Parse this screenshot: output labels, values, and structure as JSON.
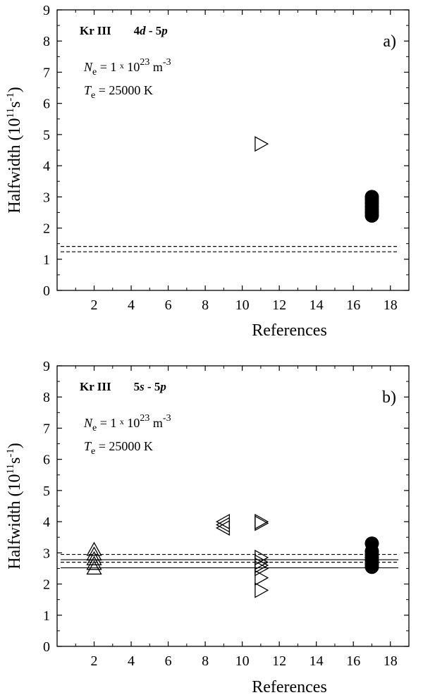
{
  "chart_data": [
    {
      "type": "scatter",
      "panel": "a)",
      "title": {
        "species": "Kr III",
        "transition_a": "4",
        "transition_a_em": "d",
        "transition_sep": " - 5",
        "transition_b_em": "p"
      },
      "annotation_ne": {
        "sym": "N",
        "sub": "e",
        "mid": " = 1 ",
        "x": "x",
        "ten": " 10",
        "exp": "23",
        "unit": " m",
        "unit_exp": "-3"
      },
      "annotation_te": {
        "sym": "T",
        "sub": "e",
        "rest": " = 25000 K"
      },
      "xlabel": "References",
      "ylabel": {
        "main": "Halfwidth  (10",
        "exp1": "11",
        "mid": "s",
        "exp2": "-1",
        "end": ")"
      },
      "xlim": [
        0,
        19
      ],
      "ylim": [
        0,
        9
      ],
      "xticks": [
        2,
        4,
        6,
        8,
        10,
        12,
        14,
        16,
        18
      ],
      "yticks": [
        0,
        1,
        2,
        3,
        4,
        5,
        6,
        7,
        8,
        9
      ],
      "series": [
        {
          "marker": "triangle-right",
          "x": [
            11
          ],
          "y": [
            4.7
          ]
        },
        {
          "marker": "filled-circle",
          "x": [
            17,
            17,
            17,
            17,
            17,
            17,
            17
          ],
          "y": [
            2.4,
            2.5,
            2.6,
            2.7,
            2.8,
            2.9,
            3.0
          ]
        }
      ],
      "hlines": [
        {
          "y": 1.41,
          "style": "dashed"
        },
        {
          "y": 1.24,
          "style": "dashed"
        }
      ]
    },
    {
      "type": "scatter",
      "panel": "b)",
      "title": {
        "species": "Kr III",
        "transition_a": "5",
        "transition_a_em": "s",
        "transition_sep": " - 5",
        "transition_b_em": "p"
      },
      "annotation_ne": {
        "sym": "N",
        "sub": "e",
        "mid": " = 1 ",
        "x": "x",
        "ten": " 10",
        "exp": "23",
        "unit": " m",
        "unit_exp": "-3"
      },
      "annotation_te": {
        "sym": "T",
        "sub": "e",
        "rest": " = 25000 K"
      },
      "xlabel": "References",
      "ylabel": {
        "main": "Halfwidth  (10",
        "exp1": "11",
        "mid": "s",
        "exp2": "-1",
        "end": ")"
      },
      "xlim": [
        0,
        19
      ],
      "ylim": [
        0,
        9
      ],
      "xticks": [
        2,
        4,
        6,
        8,
        10,
        12,
        14,
        16,
        18
      ],
      "yticks": [
        0,
        1,
        2,
        3,
        4,
        5,
        6,
        7,
        8,
        9
      ],
      "series": [
        {
          "marker": "triangle-up",
          "x": [
            2,
            2,
            2,
            2,
            2
          ],
          "y": [
            2.5,
            2.65,
            2.8,
            2.95,
            3.1
          ]
        },
        {
          "marker": "triangle-left",
          "x": [
            9,
            9,
            9
          ],
          "y": [
            3.8,
            3.9,
            4.0
          ]
        },
        {
          "marker": "triangle-right",
          "x": [
            11,
            11,
            11,
            11,
            11,
            11,
            11,
            11
          ],
          "y": [
            1.8,
            2.2,
            2.5,
            2.6,
            2.7,
            2.85,
            3.95,
            4.0
          ]
        },
        {
          "marker": "filled-circle",
          "x": [
            17,
            17,
            17,
            17,
            17,
            17,
            17
          ],
          "y": [
            2.55,
            2.65,
            2.75,
            2.85,
            2.95,
            3.05,
            3.3
          ]
        }
      ],
      "hlines": [
        {
          "y": 2.95,
          "style": "dashed"
        },
        {
          "y": 2.7,
          "style": "dashed"
        },
        {
          "y": 2.78,
          "style": "solid"
        },
        {
          "y": 2.52,
          "style": "solid"
        }
      ]
    }
  ]
}
